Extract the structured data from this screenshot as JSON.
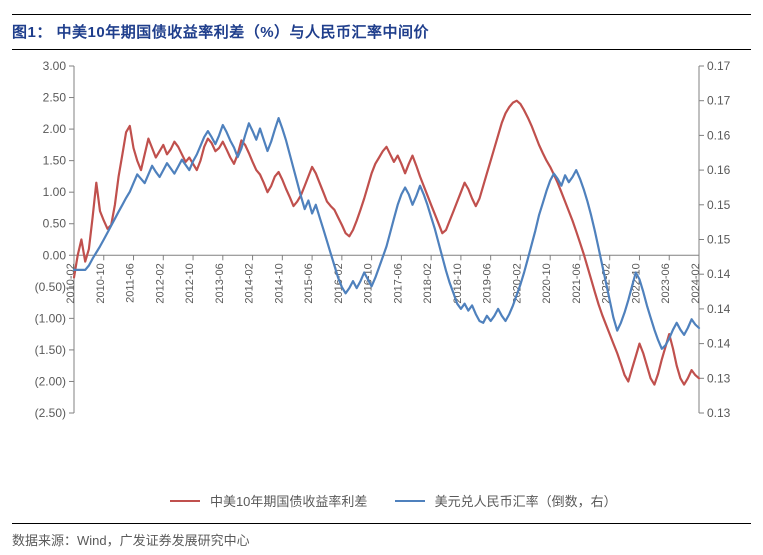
{
  "figure": {
    "title": "图1： 中美10年期国债收益率利差（%）与人民币汇率中间价",
    "source": "数据来源：Wind，广发证券发展研究中心",
    "title_color": "#1f3e8c",
    "title_fontsize": 15,
    "source_fontsize": 13,
    "source_color": "#5a5a5a",
    "rule_color": "#000000"
  },
  "chart": {
    "type": "line-dual-axis",
    "background_color": "#ffffff",
    "axis_color": "#808080",
    "tick_color": "#808080",
    "tick_fontsize": 12,
    "x_fontsize": 11,
    "line_width": 2.2,
    "left_axis": {
      "min": -2.5,
      "max": 3.0,
      "tick_step": 0.5,
      "ticks_raw": [
        "3.00",
        "2.50",
        "2.00",
        "1.50",
        "1.00",
        "0.50",
        "0.00",
        "(0.50)",
        "(1.00)",
        "(1.50)",
        "(2.00)",
        "(2.50)"
      ],
      "baseline_at_zero": true
    },
    "right_axis": {
      "min": 0.13,
      "max": 0.17,
      "ticks_values": [
        0.17,
        0.17,
        0.16,
        0.16,
        0.15,
        0.15,
        0.14,
        0.14,
        0.14,
        0.13,
        0.13
      ],
      "ticks_labels": [
        "0.17",
        "0.17",
        "0.16",
        "0.16",
        "0.15",
        "0.15",
        "0.14",
        "0.14",
        "0.14",
        "0.13",
        "0.13"
      ]
    },
    "x_axis": {
      "labels": [
        "2010-02",
        "2010-10",
        "2011-06",
        "2012-02",
        "2012-10",
        "2013-06",
        "2014-02",
        "2014-10",
        "2015-06",
        "2016-02",
        "2016-10",
        "2017-06",
        "2018-02",
        "2018-10",
        "2019-06",
        "2020-02",
        "2020-10",
        "2021-06",
        "2022-02",
        "2022-10",
        "2023-06",
        "2024-02"
      ],
      "rotation": -90
    },
    "series": [
      {
        "name": "中美10年期国债收益率利差",
        "color": "#c0504d",
        "axis": "left",
        "n": 169,
        "values": [
          -0.35,
          0.0,
          0.25,
          -0.1,
          0.1,
          0.6,
          1.15,
          0.7,
          0.55,
          0.42,
          0.48,
          0.8,
          1.25,
          1.6,
          1.95,
          2.05,
          1.7,
          1.5,
          1.35,
          1.6,
          1.85,
          1.7,
          1.55,
          1.65,
          1.75,
          1.6,
          1.68,
          1.8,
          1.72,
          1.6,
          1.48,
          1.55,
          1.45,
          1.35,
          1.5,
          1.72,
          1.85,
          1.78,
          1.65,
          1.7,
          1.8,
          1.68,
          1.55,
          1.45,
          1.6,
          1.82,
          1.75,
          1.62,
          1.48,
          1.35,
          1.28,
          1.15,
          1.0,
          1.1,
          1.25,
          1.32,
          1.2,
          1.05,
          0.92,
          0.78,
          0.85,
          0.95,
          1.1,
          1.25,
          1.4,
          1.3,
          1.15,
          1.0,
          0.85,
          0.78,
          0.72,
          0.6,
          0.48,
          0.35,
          0.3,
          0.4,
          0.55,
          0.72,
          0.9,
          1.1,
          1.3,
          1.45,
          1.55,
          1.65,
          1.72,
          1.6,
          1.48,
          1.58,
          1.45,
          1.3,
          1.45,
          1.58,
          1.42,
          1.25,
          1.1,
          0.95,
          0.8,
          0.65,
          0.5,
          0.35,
          0.4,
          0.55,
          0.7,
          0.85,
          1.0,
          1.15,
          1.05,
          0.9,
          0.78,
          0.9,
          1.1,
          1.3,
          1.5,
          1.7,
          1.9,
          2.1,
          2.25,
          2.35,
          2.42,
          2.45,
          2.4,
          2.3,
          2.18,
          2.05,
          1.9,
          1.75,
          1.62,
          1.5,
          1.4,
          1.28,
          1.15,
          1.0,
          0.85,
          0.7,
          0.55,
          0.38,
          0.2,
          0.02,
          -0.18,
          -0.38,
          -0.58,
          -0.78,
          -0.95,
          -1.1,
          -1.25,
          -1.4,
          -1.55,
          -1.72,
          -1.9,
          -2.0,
          -1.8,
          -1.6,
          -1.4,
          -1.55,
          -1.75,
          -1.95,
          -2.05,
          -1.88,
          -1.65,
          -1.45,
          -1.25,
          -1.48,
          -1.75,
          -1.95,
          -2.05,
          -1.95,
          -1.82,
          -1.9,
          -1.95
        ]
      },
      {
        "name": "美元兑人民币汇率（倒数，右）",
        "color": "#4f81bd",
        "axis": "right",
        "n": 169,
        "values": [
          0.1465,
          0.1465,
          0.1465,
          0.1465,
          0.147,
          0.1478,
          0.1485,
          0.1492,
          0.15,
          0.1508,
          0.1516,
          0.1524,
          0.1532,
          0.154,
          0.1548,
          0.1555,
          0.1565,
          0.1575,
          0.157,
          0.1565,
          0.1575,
          0.1585,
          0.1578,
          0.1572,
          0.158,
          0.1588,
          0.1582,
          0.1576,
          0.1584,
          0.1592,
          0.1586,
          0.158,
          0.159,
          0.1598,
          0.1608,
          0.1618,
          0.1625,
          0.1618,
          0.161,
          0.162,
          0.1632,
          0.1624,
          0.1614,
          0.1606,
          0.1595,
          0.1605,
          0.162,
          0.1634,
          0.1625,
          0.1615,
          0.1628,
          0.1615,
          0.1602,
          0.1613,
          0.1627,
          0.164,
          0.1628,
          0.1614,
          0.1598,
          0.1582,
          0.1566,
          0.155,
          0.1535,
          0.1545,
          0.153,
          0.154,
          0.1526,
          0.1512,
          0.1498,
          0.1484,
          0.147,
          0.1456,
          0.1445,
          0.1438,
          0.1444,
          0.1452,
          0.1444,
          0.1452,
          0.1462,
          0.1454,
          0.1446,
          0.1456,
          0.1468,
          0.148,
          0.1492,
          0.1508,
          0.1524,
          0.154,
          0.1552,
          0.156,
          0.1552,
          0.154,
          0.155,
          0.1562,
          0.1552,
          0.154,
          0.1526,
          0.1512,
          0.1496,
          0.148,
          0.1464,
          0.145,
          0.1438,
          0.1426,
          0.142,
          0.1426,
          0.1418,
          0.1424,
          0.1414,
          0.1406,
          0.1404,
          0.1412,
          0.1406,
          0.1412,
          0.142,
          0.1412,
          0.1406,
          0.1414,
          0.1424,
          0.1436,
          0.1448,
          0.1462,
          0.1478,
          0.1494,
          0.151,
          0.1528,
          0.1542,
          0.1556,
          0.1568,
          0.1576,
          0.157,
          0.1562,
          0.1574,
          0.1566,
          0.1572,
          0.158,
          0.157,
          0.1558,
          0.1544,
          0.1528,
          0.151,
          0.149,
          0.147,
          0.145,
          0.143,
          0.141,
          0.1395,
          0.1404,
          0.1416,
          0.143,
          0.1446,
          0.1462,
          0.1454,
          0.144,
          0.1424,
          0.141,
          0.1396,
          0.1384,
          0.1374,
          0.1378,
          0.1386,
          0.1396,
          0.1404,
          0.1396,
          0.139,
          0.1398,
          0.1408,
          0.1402,
          0.1398
        ]
      }
    ],
    "legend": {
      "position": "bottom",
      "fontsize": 13,
      "text_color": "#595959",
      "swatch_width": 30
    }
  }
}
